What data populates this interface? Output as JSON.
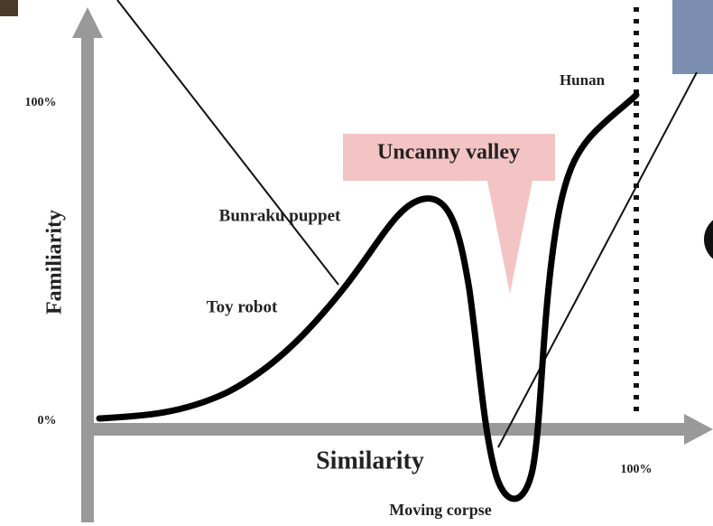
{
  "axes": {
    "y_label": "Familiarity",
    "x_label": "Similarity",
    "y_low": "0%",
    "y_high": "100%",
    "x_high": "100%"
  },
  "callout": "Uncanny valley",
  "annotations": [
    "Hunan",
    "Bunraku puppet",
    "Toy robot",
    "Moving corpse"
  ]
}
